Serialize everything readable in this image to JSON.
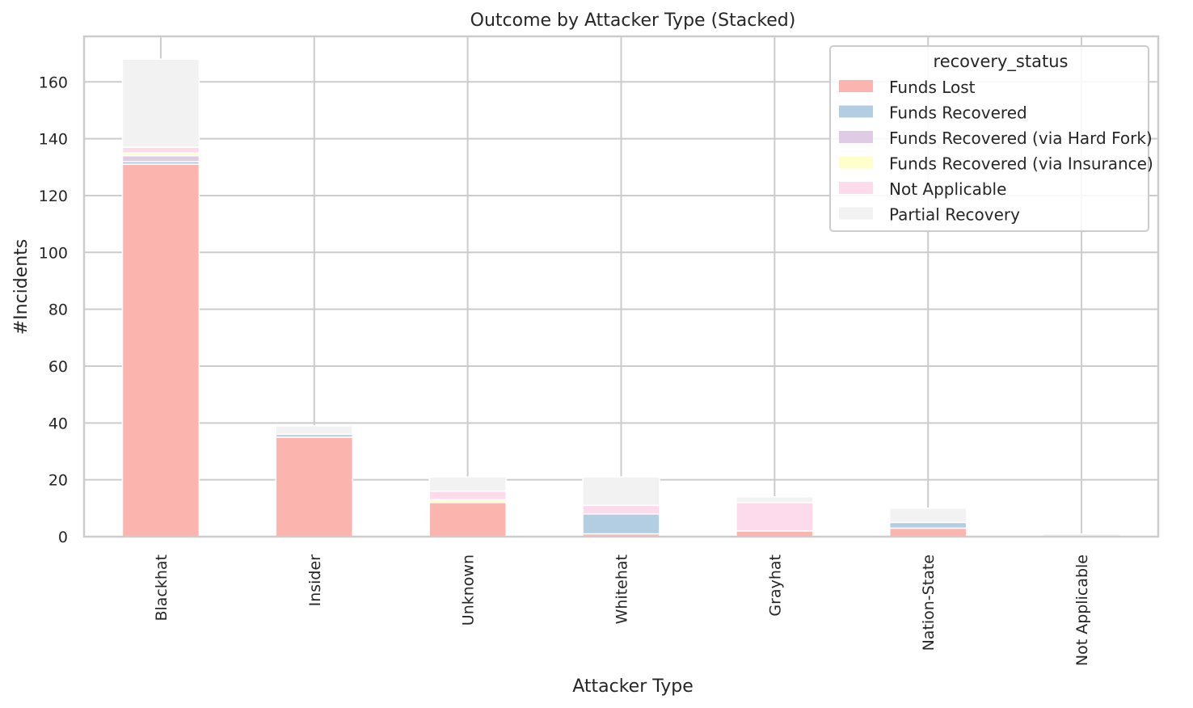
{
  "chart_data": {
    "type": "bar",
    "stacked": true,
    "title": "Outcome by Attacker Type (Stacked)",
    "xlabel": "Attacker Type",
    "ylabel": "#Incidents",
    "ylim": [
      0,
      176
    ],
    "yticks": [
      0,
      20,
      40,
      60,
      80,
      100,
      120,
      140,
      160
    ],
    "grid": true,
    "legend_title": "recovery_status",
    "legend_position": "top-right",
    "categories": [
      "Blackhat",
      "Insider",
      "Unknown",
      "Whitehat",
      "Grayhat",
      "Nation-State",
      "Not Applicable"
    ],
    "series": [
      {
        "name": "Funds Lost",
        "color": "#fbb4ae",
        "values": [
          131,
          35,
          12,
          1,
          2,
          3,
          0
        ]
      },
      {
        "name": "Funds Recovered",
        "color": "#b3cde3",
        "values": [
          1,
          1,
          0,
          7,
          0,
          2,
          0
        ]
      },
      {
        "name": "Funds Recovered (via Hard Fork)",
        "color": "#decbe4",
        "values": [
          2,
          0,
          0,
          0,
          0,
          0,
          0
        ]
      },
      {
        "name": "Funds Recovered (via Insurance)",
        "color": "#ffffcc",
        "values": [
          1,
          0,
          1,
          0,
          0,
          0,
          0
        ]
      },
      {
        "name": "Not Applicable",
        "color": "#fddaec",
        "values": [
          2,
          0,
          3,
          3,
          10,
          0,
          0
        ]
      },
      {
        "name": "Partial Recovery",
        "color": "#f2f2f2",
        "values": [
          31,
          3,
          5,
          10,
          2,
          5,
          1
        ]
      }
    ]
  }
}
